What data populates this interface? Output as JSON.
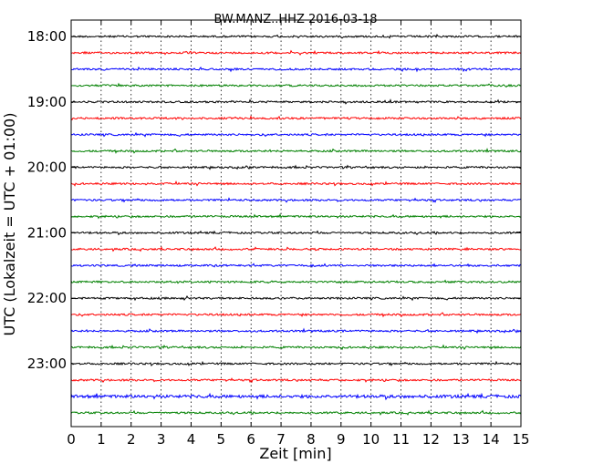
{
  "chart_data": {
    "type": "line",
    "title": "BW.MANZ..HHZ 2016-03-18",
    "xlabel": "Zeit  [min]",
    "ylabel": "UTC (Lokalzeit = UTC + 01:00)",
    "xlim": [
      0,
      15
    ],
    "x_ticks": [
      "0",
      "1",
      "2",
      "3",
      "4",
      "5",
      "6",
      "7",
      "8",
      "9",
      "10",
      "11",
      "12",
      "13",
      "14",
      "15"
    ],
    "y_ticks": [
      "18:00",
      "19:00",
      "20:00",
      "21:00",
      "22:00",
      "23:00"
    ],
    "trace_colors": [
      "#000000",
      "#ff0000",
      "#0000ff",
      "#008000"
    ],
    "grid": "vertical dotted",
    "series": [
      {
        "start": "18:00",
        "color": "#000000"
      },
      {
        "start": "18:15",
        "color": "#ff0000"
      },
      {
        "start": "18:30",
        "color": "#0000ff"
      },
      {
        "start": "18:45",
        "color": "#008000"
      },
      {
        "start": "19:00",
        "color": "#000000"
      },
      {
        "start": "19:15",
        "color": "#ff0000"
      },
      {
        "start": "19:30",
        "color": "#0000ff"
      },
      {
        "start": "19:45",
        "color": "#008000"
      },
      {
        "start": "20:00",
        "color": "#000000"
      },
      {
        "start": "20:15",
        "color": "#ff0000"
      },
      {
        "start": "20:30",
        "color": "#0000ff"
      },
      {
        "start": "20:45",
        "color": "#008000"
      },
      {
        "start": "21:00",
        "color": "#000000"
      },
      {
        "start": "21:15",
        "color": "#ff0000"
      },
      {
        "start": "21:30",
        "color": "#0000ff"
      },
      {
        "start": "21:45",
        "color": "#008000"
      },
      {
        "start": "22:00",
        "color": "#000000"
      },
      {
        "start": "22:15",
        "color": "#ff0000"
      },
      {
        "start": "22:30",
        "color": "#0000ff"
      },
      {
        "start": "22:45",
        "color": "#008000"
      },
      {
        "start": "23:00",
        "color": "#000000"
      },
      {
        "start": "23:15",
        "color": "#ff0000"
      },
      {
        "start": "23:30",
        "color": "#0000ff"
      },
      {
        "start": "23:45",
        "color": "#008000"
      }
    ]
  }
}
